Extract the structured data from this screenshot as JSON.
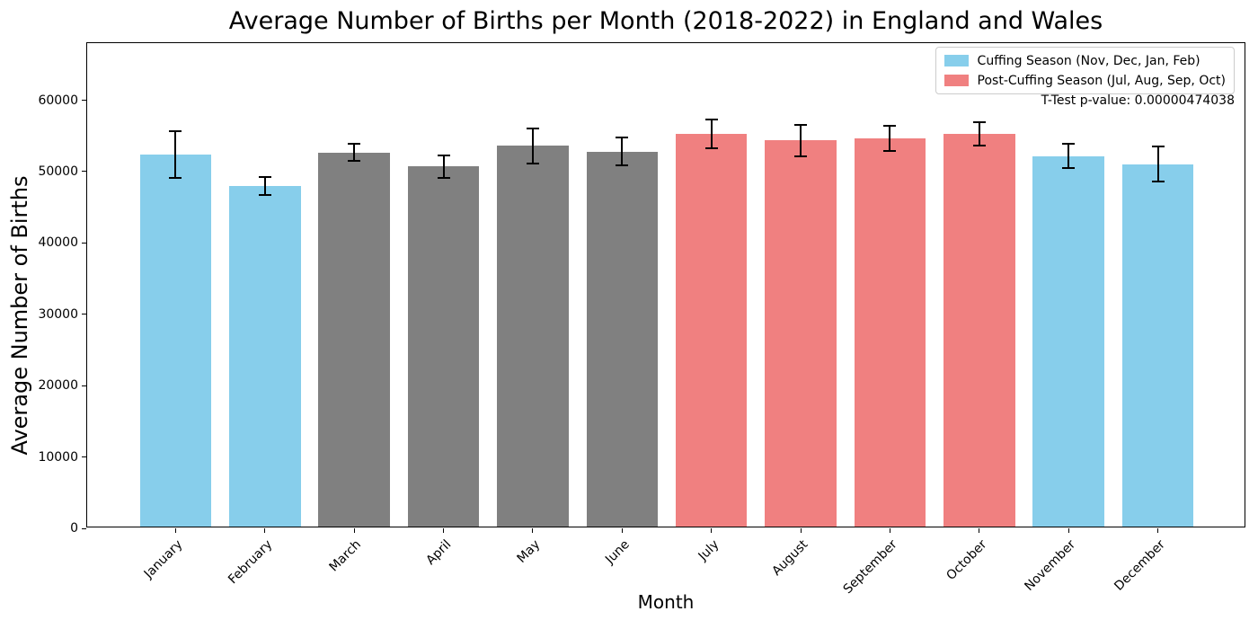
{
  "chart_data": {
    "type": "bar",
    "title": "Average Number of Births per Month (2018-2022) in England and Wales",
    "xlabel": "Month",
    "ylabel": "Average Number of Births",
    "ylim": [
      0,
      68000
    ],
    "yticks": [
      0,
      10000,
      20000,
      30000,
      40000,
      50000,
      60000
    ],
    "grid": false,
    "legend_position": "upper right",
    "categories": [
      "January",
      "February",
      "March",
      "April",
      "May",
      "June",
      "July",
      "August",
      "September",
      "October",
      "November",
      "December"
    ],
    "values": [
      52150,
      47700,
      52400,
      50450,
      53350,
      52550,
      55050,
      54100,
      54450,
      55050,
      51900,
      50800
    ],
    "errors": [
      3300,
      1250,
      1200,
      1600,
      2450,
      1950,
      2000,
      2200,
      1750,
      1650,
      1700,
      2500
    ],
    "bar_groups": [
      "cuffing",
      "cuffing",
      "other",
      "other",
      "other",
      "other",
      "post_cuffing",
      "post_cuffing",
      "post_cuffing",
      "post_cuffing",
      "cuffing",
      "cuffing"
    ],
    "group_colors": {
      "cuffing": "#87CEEB",
      "other": "#808080",
      "post_cuffing": "#F08080"
    },
    "error_bar_color": "#000000",
    "legend": {
      "entries": [
        {
          "label": "Cuffing Season (Nov, Dec, Jan, Feb)",
          "color": "#87CEEB"
        },
        {
          "label": "Post-Cuffing Season (Jul, Aug, Sep, Oct)",
          "color": "#F08080"
        }
      ]
    },
    "annotation": "T-Test p-value: 0.00000474038"
  }
}
